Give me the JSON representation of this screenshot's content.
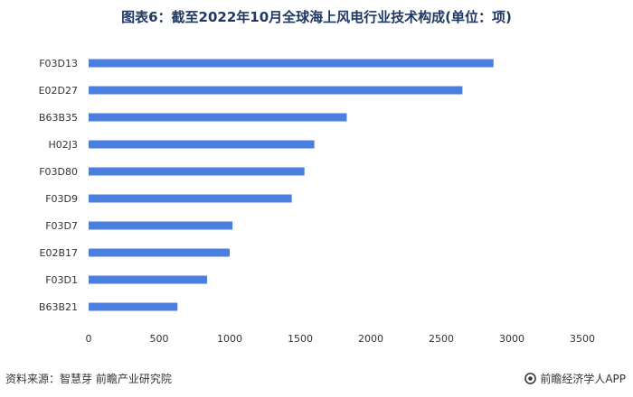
{
  "chart_data": {
    "type": "bar",
    "orientation": "horizontal",
    "title": "图表6：截至2022年10月全球海上风电行业技术构成(单位：项)",
    "categories": [
      "F03D13",
      "E02D27",
      "B63B35",
      "H02J3",
      "F03D80",
      "F03D9",
      "F03D7",
      "E02B17",
      "F03D1",
      "B63B21"
    ],
    "values": [
      2870,
      2650,
      1830,
      1600,
      1530,
      1440,
      1020,
      1000,
      840,
      630
    ],
    "xlim": [
      0,
      3500
    ],
    "xticks": [
      0,
      500,
      1000,
      1500,
      2000,
      2500,
      3000,
      3500
    ],
    "bar_color": "#4a7fe0",
    "grid": false,
    "legend": "none"
  },
  "footer": {
    "source": "资料来源：智慧芽 前瞻产业研究院",
    "brand": "前瞻经济学人APP"
  }
}
